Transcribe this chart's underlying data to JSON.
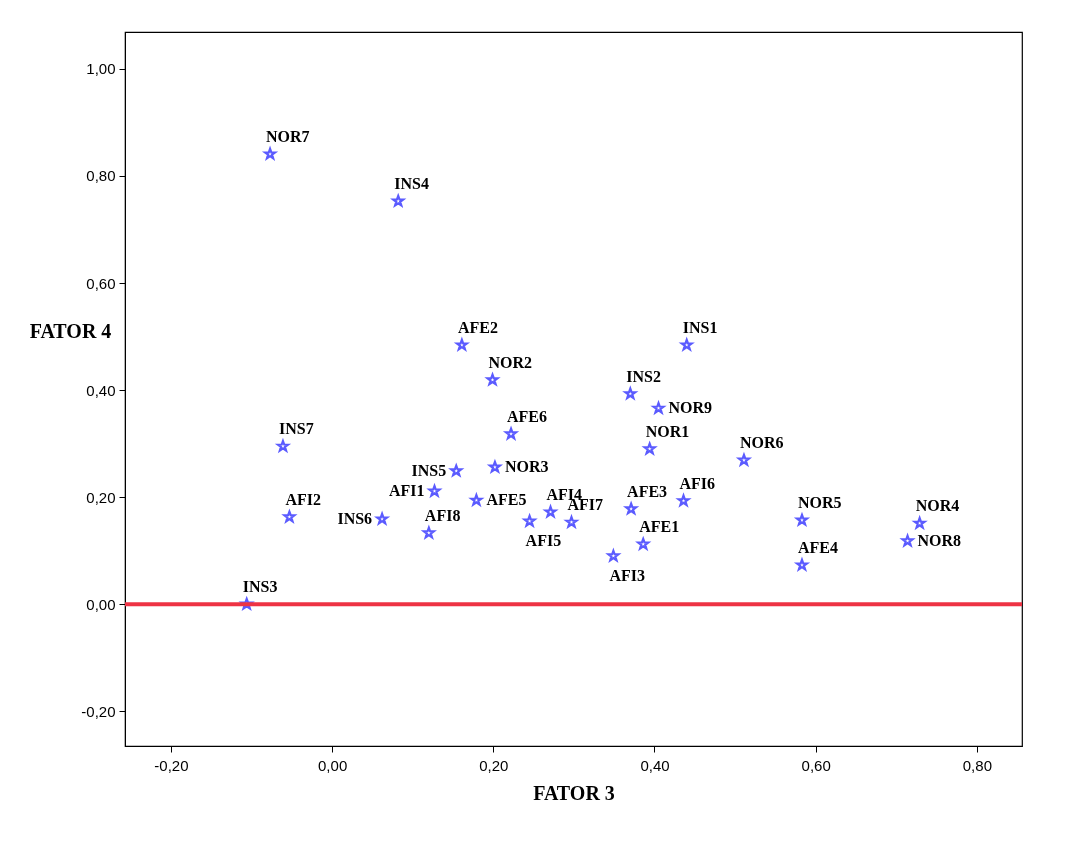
{
  "chart_data": {
    "type": "scatter",
    "xlabel": "FATOR 3",
    "ylabel": "FATOR 4",
    "x": [
      -0.077,
      0.082,
      0.161,
      0.199,
      0.44,
      0.37,
      0.405,
      0.222,
      0.394,
      0.511,
      -0.061,
      0.154,
      0.202,
      0.127,
      0.179,
      -0.053,
      0.062,
      0.12,
      0.245,
      0.271,
      0.297,
      0.349,
      0.371,
      0.386,
      0.436,
      0.583,
      0.583,
      0.729,
      0.714,
      -0.106
    ],
    "series": [
      {
        "color": "#5b5bff",
        "values": [
          0.841,
          0.753,
          0.484,
          0.419,
          0.484,
          0.393,
          0.366,
          0.318,
          0.29,
          0.269,
          0.295,
          0.249,
          0.256,
          0.211,
          0.194,
          0.163,
          0.159,
          0.133,
          0.155,
          0.172,
          0.153,
          0.09,
          0.178,
          0.112,
          0.193,
          0.157,
          0.073,
          0.151,
          0.118,
          0.0
        ]
      }
    ],
    "annotations": [
      {
        "text": "NOR7",
        "x": -0.077,
        "y": 0.841
      },
      {
        "text": "INS4",
        "x": 0.082,
        "y": 0.753
      },
      {
        "text": "AFE2",
        "x": 0.161,
        "y": 0.484
      },
      {
        "text": "NOR2",
        "x": 0.199,
        "y": 0.419
      },
      {
        "text": "INS1",
        "x": 0.44,
        "y": 0.484
      },
      {
        "text": "INS2",
        "x": 0.37,
        "y": 0.393
      },
      {
        "text": "NOR9",
        "x": 0.405,
        "y": 0.366
      },
      {
        "text": "AFE6",
        "x": 0.222,
        "y": 0.318
      },
      {
        "text": "NOR1",
        "x": 0.394,
        "y": 0.29
      },
      {
        "text": "NOR6",
        "x": 0.511,
        "y": 0.269
      },
      {
        "text": "INS7",
        "x": -0.061,
        "y": 0.295
      },
      {
        "text": "INS5",
        "x": 0.154,
        "y": 0.249
      },
      {
        "text": "NOR3",
        "x": 0.202,
        "y": 0.256
      },
      {
        "text": "AFI1",
        "x": 0.127,
        "y": 0.211
      },
      {
        "text": "AFE5",
        "x": 0.179,
        "y": 0.194
      },
      {
        "text": "AFI2",
        "x": -0.053,
        "y": 0.163
      },
      {
        "text": "INS6",
        "x": 0.062,
        "y": 0.159
      },
      {
        "text": "AFI8",
        "x": 0.12,
        "y": 0.133
      },
      {
        "text": "AFI5",
        "x": 0.245,
        "y": 0.155
      },
      {
        "text": "AFI4",
        "x": 0.271,
        "y": 0.172
      },
      {
        "text": "AFI7",
        "x": 0.297,
        "y": 0.153
      },
      {
        "text": "AFI3",
        "x": 0.349,
        "y": 0.09
      },
      {
        "text": "AFE3",
        "x": 0.371,
        "y": 0.178
      },
      {
        "text": "AFE1",
        "x": 0.386,
        "y": 0.112
      },
      {
        "text": "AFI6",
        "x": 0.436,
        "y": 0.193
      },
      {
        "text": "NOR5",
        "x": 0.583,
        "y": 0.157
      },
      {
        "text": "AFE4",
        "x": 0.583,
        "y": 0.073
      },
      {
        "text": "NOR4",
        "x": 0.729,
        "y": 0.151
      },
      {
        "text": "NOR8",
        "x": 0.714,
        "y": 0.118
      },
      {
        "text": "INS3",
        "x": -0.106,
        "y": 0.0
      }
    ],
    "xlim": [
      -0.257,
      0.856
    ],
    "ylim": [
      -0.265,
      1.069
    ],
    "xticks": [
      {
        "value": -0.2,
        "label": "-0,20"
      },
      {
        "value": 0,
        "label": "0,00"
      },
      {
        "value": 0.2,
        "label": "0,20"
      },
      {
        "value": 0.4,
        "label": "0,40"
      },
      {
        "value": 0.6,
        "label": "0,60"
      },
      {
        "value": 0.8,
        "label": "0,80"
      }
    ],
    "yticks": [
      {
        "value": -0.2,
        "label": "-0,20"
      },
      {
        "value": 0,
        "label": "0,00"
      },
      {
        "value": 0.2,
        "label": "0,20"
      },
      {
        "value": 0.4,
        "label": "0,40"
      },
      {
        "value": 0.6,
        "label": "0,60"
      },
      {
        "value": 0.8,
        "label": "0,80"
      },
      {
        "value": 1,
        "label": "1,00"
      }
    ],
    "ref_lines": [
      {
        "axis": "y",
        "value": 0,
        "color": "#ee3344"
      }
    ],
    "marker": "star",
    "grid": false
  }
}
